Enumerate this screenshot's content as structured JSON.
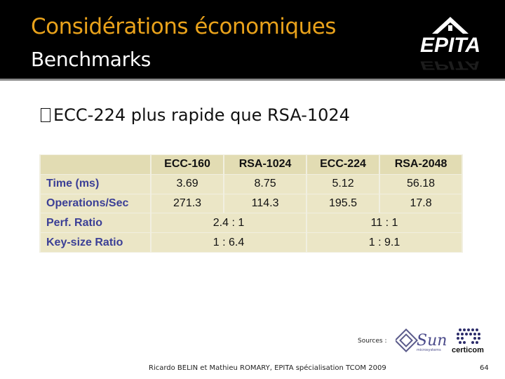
{
  "slide": {
    "title_line1": "Considérations économiques",
    "title_line2": "Benchmarks",
    "logo_text": "EPITA",
    "bullet": "ECC-224 plus rapide que RSA-1024"
  },
  "colors": {
    "header_bg": "#000000",
    "title_accent": "#e9a21b",
    "row_label": "#3b3f96",
    "cell_bg": "#ebe6c6"
  },
  "table": {
    "columns": [
      "ECC-160",
      "RSA-1024",
      "ECC-224",
      "RSA-2048"
    ],
    "rows": [
      {
        "label": "Time (ms)",
        "values": [
          "3.69",
          "8.75",
          "5.12",
          "56.18"
        ]
      },
      {
        "label": "Operations/Sec",
        "values": [
          "271.3",
          "114.3",
          "195.5",
          "17.8"
        ]
      },
      {
        "label": "Perf. Ratio",
        "merged": [
          "2.4 : 1",
          "11 : 1"
        ]
      },
      {
        "label": "Key-size Ratio",
        "merged": [
          "1 : 6.4",
          "1 : 9.1"
        ]
      }
    ]
  },
  "sources": {
    "label": "Sources :",
    "logos": [
      "Sun",
      "microsystems",
      "certicom"
    ]
  },
  "footer": {
    "text": "Ricardo BELIN et Mathieu ROMARY, EPITA spécialisation TCOM 2009",
    "page_number": "64"
  }
}
